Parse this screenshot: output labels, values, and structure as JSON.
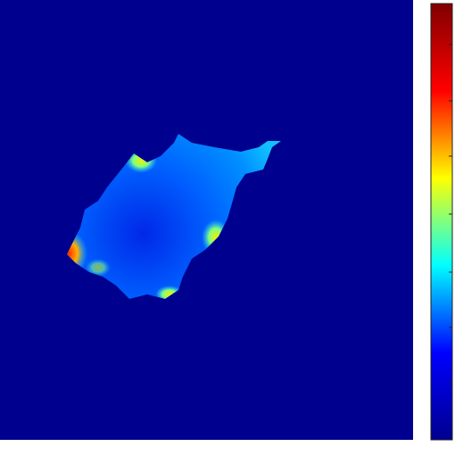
{
  "chart_data": {
    "type": "heatmap",
    "colormap": [
      "#00008f",
      "#0000ff",
      "#00ffff",
      "#ffff00",
      "#ff0000",
      "#800000"
    ]
  }
}
